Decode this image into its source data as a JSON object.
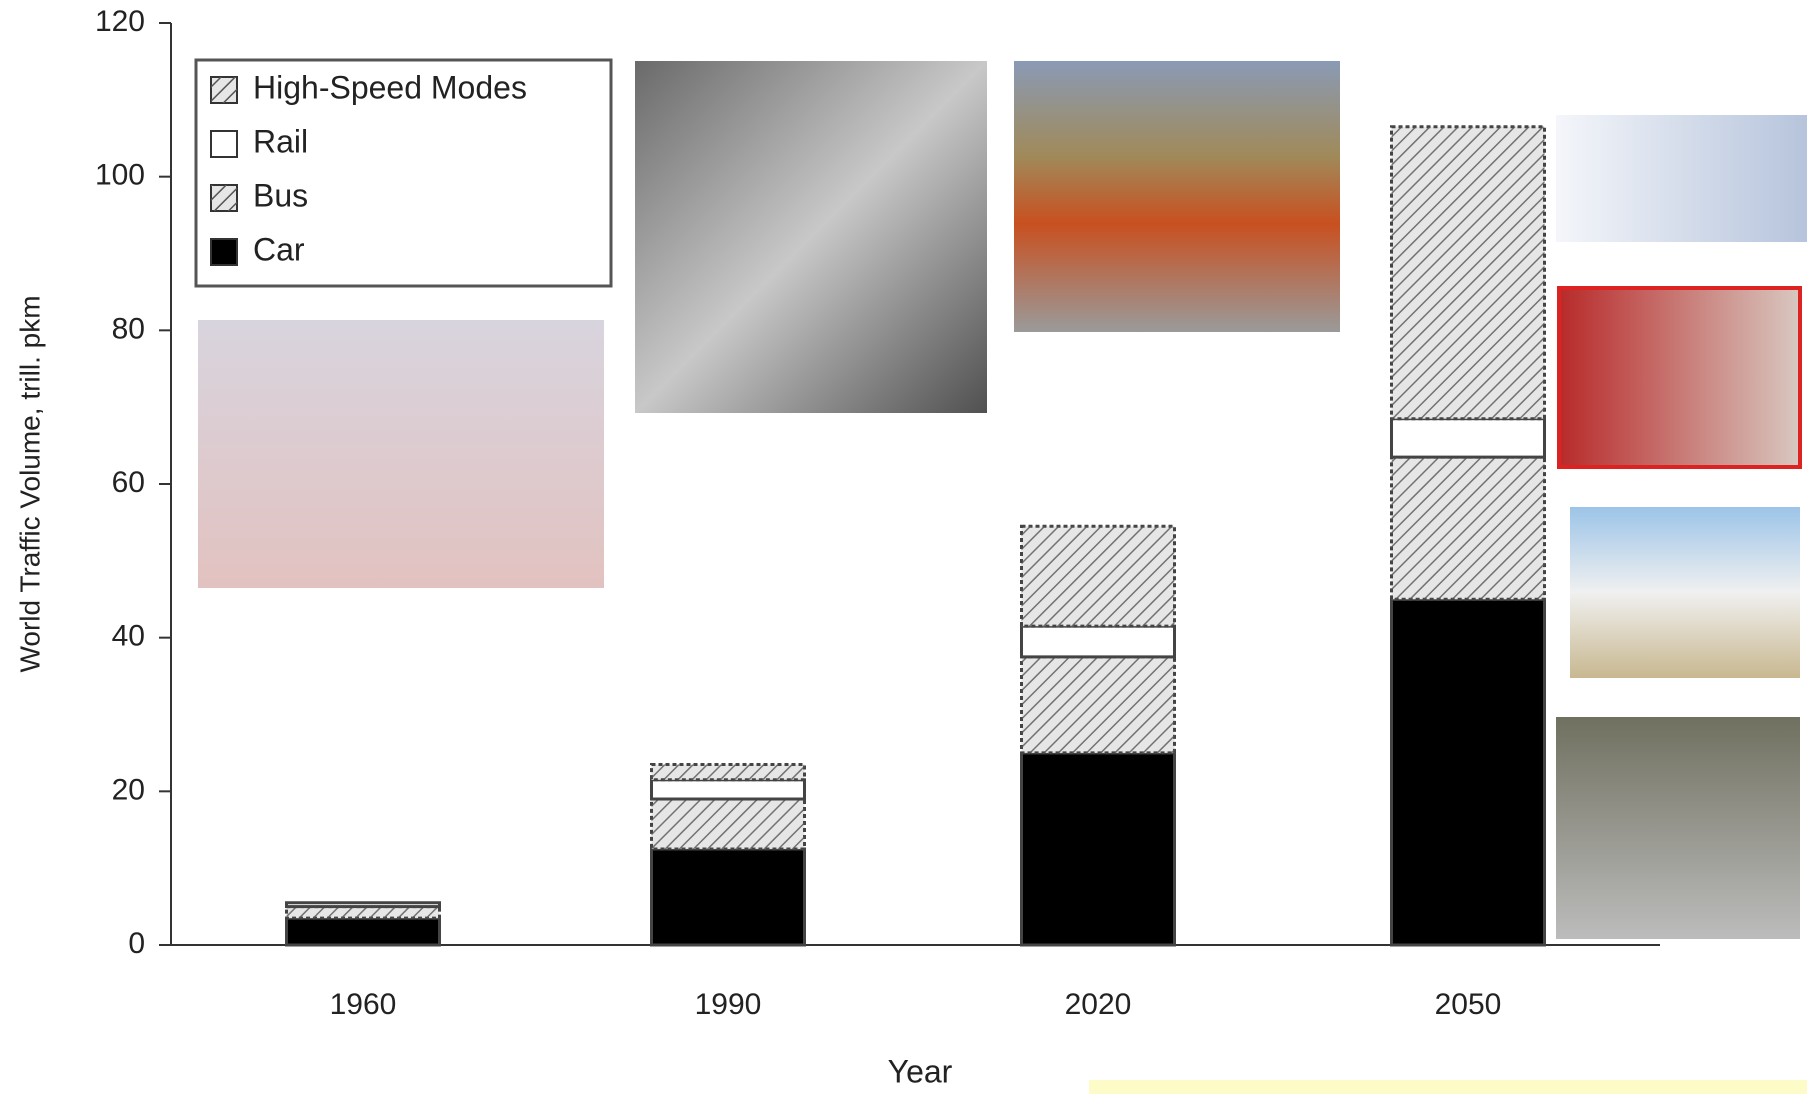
{
  "chart_data": {
    "type": "bar",
    "stacked": true,
    "y_label": "World Traffic Volume, trill. pkm",
    "x_label": "Year",
    "categories": [
      "1960",
      "1990",
      "2020",
      "2050"
    ],
    "series": [
      {
        "name": "Car",
        "color": "#000000",
        "hatch": false,
        "values": [
          3.5,
          12.5,
          25,
          45
        ]
      },
      {
        "name": "Bus",
        "color": "#e6e6e6",
        "hatch": true,
        "values": [
          1.5,
          6.5,
          12.5,
          18.5
        ]
      },
      {
        "name": "Rail",
        "color": "#ffffff",
        "hatch": false,
        "values": [
          0.5,
          2.5,
          4,
          5
        ]
      },
      {
        "name": "High-Speed Modes",
        "color": "#e6e6e6",
        "hatch": true,
        "values": [
          0,
          2,
          13,
          38
        ]
      }
    ],
    "ylim": [
      0,
      120
    ],
    "yticks": [
      0,
      20,
      40,
      60,
      80,
      100,
      120
    ],
    "legend": "top-left"
  }
}
